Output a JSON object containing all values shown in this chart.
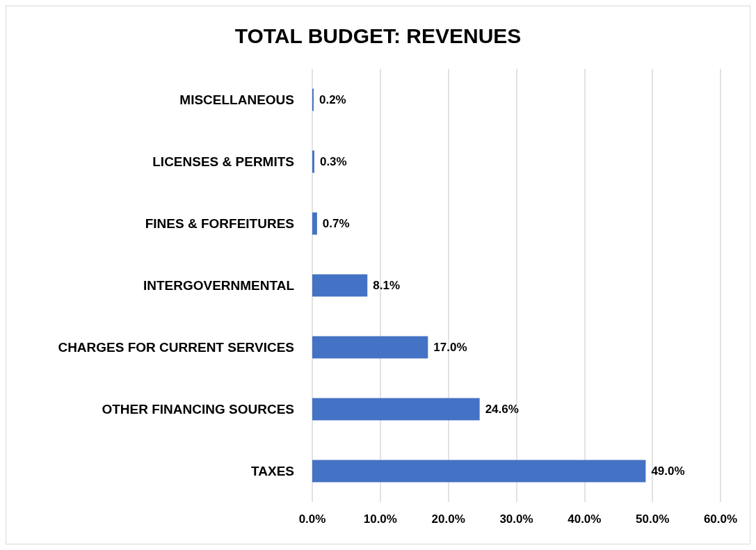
{
  "chart_data": {
    "type": "bar",
    "orientation": "horizontal",
    "title": "TOTAL BUDGET: REVENUES",
    "categories": [
      "MISCELLANEOUS",
      "LICENSES & PERMITS",
      "FINES & FORFEITURES",
      "INTERGOVERNMENTAL",
      "CHARGES FOR CURRENT SERVICES",
      "OTHER FINANCING SOURCES",
      "TAXES"
    ],
    "values": [
      0.2,
      0.3,
      0.7,
      8.1,
      17.0,
      24.6,
      49.0
    ],
    "value_labels": [
      "0.2%",
      "0.3%",
      "0.7%",
      "8.1%",
      "17.0%",
      "24.6%",
      "49.0%"
    ],
    "color": "#4472c4",
    "xlim": [
      0,
      60
    ],
    "xticks": [
      {
        "value": 0,
        "label": "0.0%"
      },
      {
        "value": 10,
        "label": "10.0%"
      },
      {
        "value": 20,
        "label": "20.0%"
      },
      {
        "value": 30,
        "label": "30.0%"
      },
      {
        "value": 40,
        "label": "40.0%"
      },
      {
        "value": 50,
        "label": "50.0%"
      },
      {
        "value": 60,
        "label": "60.0%"
      }
    ],
    "grid": "x"
  }
}
